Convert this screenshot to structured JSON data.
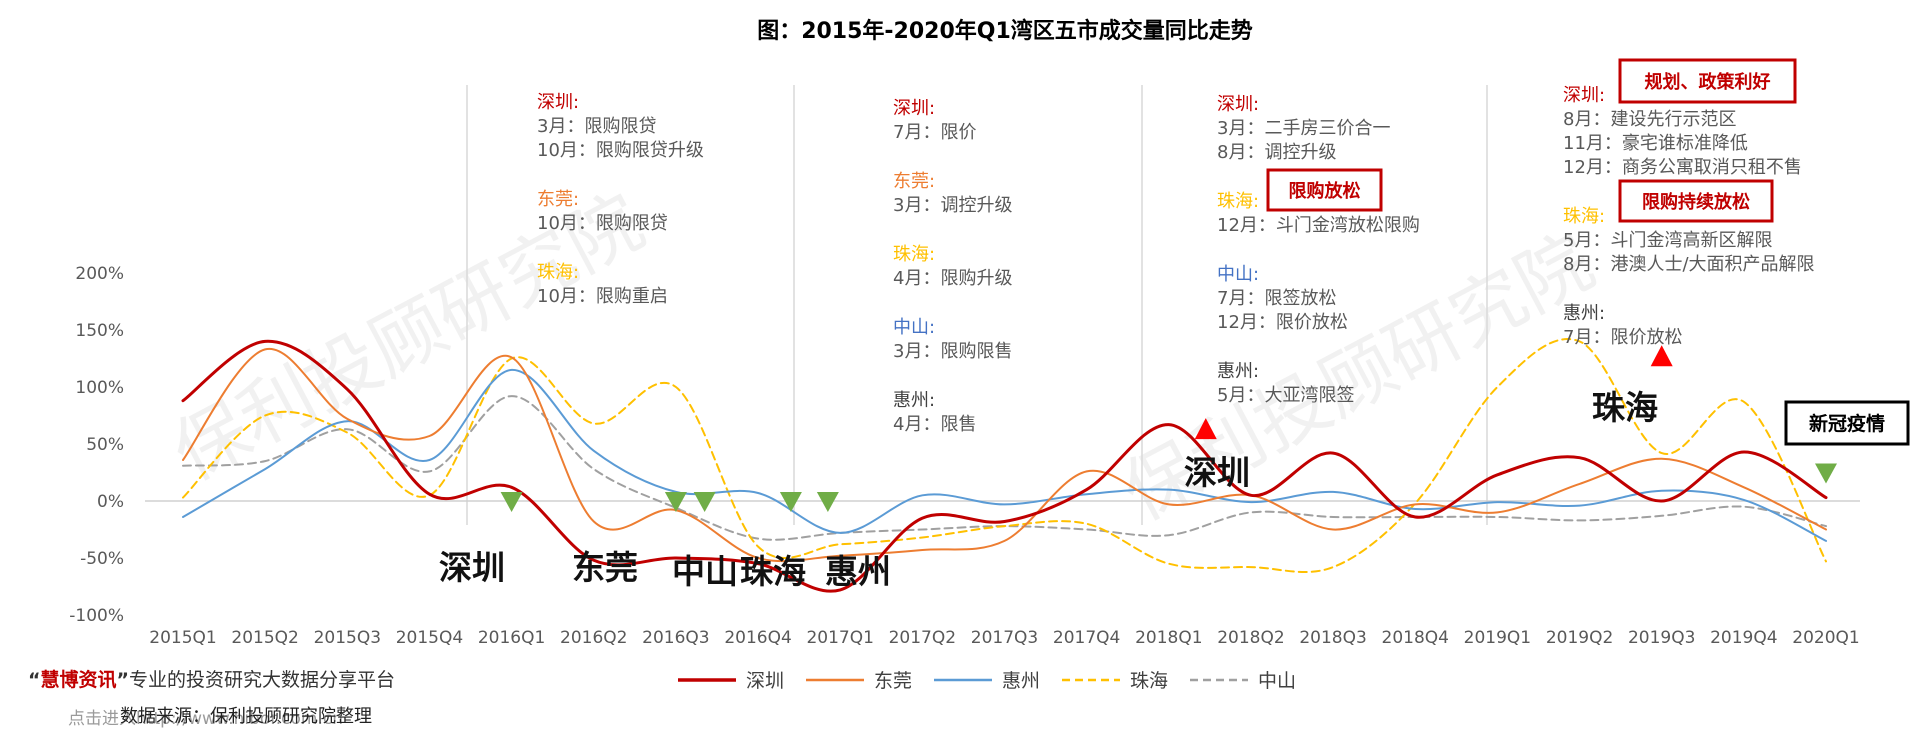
{
  "chart_data": {
    "type": "line",
    "title": "图：2015年-2020年Q1湾区五市成交量同比走势",
    "categories": [
      "2015Q1",
      "2015Q2",
      "2015Q3",
      "2015Q4",
      "2016Q1",
      "2016Q2",
      "2016Q3",
      "2016Q4",
      "2017Q1",
      "2017Q2",
      "2017Q3",
      "2017Q4",
      "2018Q1",
      "2018Q2",
      "2018Q3",
      "2018Q4",
      "2019Q1",
      "2019Q2",
      "2019Q3",
      "2019Q4",
      "2020Q1"
    ],
    "y_ticks": [
      "200%",
      "150%",
      "100%",
      "50%",
      "0%",
      "-50%",
      "-100%"
    ],
    "ylim": [
      -100,
      200
    ],
    "series": [
      {
        "name": "深圳",
        "color": "#c00000",
        "dash": "none",
        "width": 3,
        "values": [
          88,
          140,
          98,
          6,
          12,
          -52,
          -50,
          -55,
          -78,
          -15,
          -18,
          10,
          67,
          5,
          42,
          -14,
          23,
          38,
          0,
          43,
          3
        ]
      },
      {
        "name": "东莞",
        "color": "#ed7d31",
        "dash": "none",
        "width": 2,
        "values": [
          36,
          133,
          72,
          57,
          126,
          -18,
          -8,
          -50,
          -48,
          -43,
          -35,
          26,
          -3,
          5,
          -25,
          -3,
          -10,
          15,
          37,
          12,
          -25
        ]
      },
      {
        "name": "惠州",
        "color": "#5b9bd5",
        "dash": "none",
        "width": 2,
        "values": [
          -14,
          28,
          70,
          36,
          115,
          44,
          8,
          7,
          -28,
          5,
          -3,
          6,
          10,
          -1,
          8,
          -7,
          -1,
          -4,
          9,
          1,
          -35
        ]
      },
      {
        "name": "珠海",
        "color": "#ffc000",
        "dash": "8 5",
        "width": 2,
        "values": [
          3,
          75,
          60,
          5,
          125,
          68,
          100,
          -40,
          -38,
          -32,
          -22,
          -20,
          -55,
          -58,
          -58,
          -2,
          100,
          140,
          42,
          87,
          -53
        ]
      },
      {
        "name": "中山",
        "color": "#a0a0a0",
        "dash": "8 5",
        "width": 2,
        "values": [
          31,
          35,
          63,
          26,
          92,
          28,
          -6,
          -33,
          -28,
          -25,
          -22,
          -25,
          -30,
          -10,
          -14,
          -14,
          -14,
          -17,
          -13,
          -5,
          -22
        ]
      }
    ],
    "legend_position": "bottom",
    "grid": false,
    "city_events": [
      {
        "label": "深圳",
        "category": "2015Q4",
        "value": 0,
        "kind": "down"
      },
      {
        "label": "东莞",
        "category": "2016Q2",
        "value": 0,
        "kind": "down"
      },
      {
        "label": "中山",
        "category": "2016Q3",
        "value": 0,
        "kind": "down"
      },
      {
        "label": "珠海",
        "category": "2016Q4",
        "value": 0,
        "kind": "down"
      },
      {
        "label": "惠州",
        "category": "2017Q1",
        "value": 0,
        "kind": "down"
      },
      {
        "label": "深圳",
        "category": "2018Q1",
        "value": 63,
        "kind": "up"
      },
      {
        "label": "珠海",
        "category": "2019Q3",
        "value": 127,
        "kind": "up"
      },
      {
        "label": "",
        "category": "2020Q1",
        "value": 25,
        "kind": "down"
      }
    ],
    "badges": [
      "限购放松",
      "规划、政策利好",
      "限购持续放松",
      "新冠疫情"
    ],
    "policy_groups": [
      [
        {
          "city": "深圳:",
          "color": "#c00000",
          "lines": [
            "3月：限购限贷",
            "10月：限购限贷升级"
          ]
        },
        {
          "city": "东莞:",
          "color": "#ed7d31",
          "lines": [
            "10月：限购限贷"
          ]
        },
        {
          "city": "珠海:",
          "color": "#ffc000",
          "lines": [
            "10月：限购重启"
          ]
        }
      ],
      [
        {
          "city": "深圳:",
          "color": "#c00000",
          "lines": [
            "7月：限价"
          ]
        },
        {
          "city": "东莞:",
          "color": "#ed7d31",
          "lines": [
            "3月：调控升级"
          ]
        },
        {
          "city": "珠海:",
          "color": "#ffc000",
          "lines": [
            "4月：限购升级"
          ]
        },
        {
          "city": "中山:",
          "color": "#4472c4",
          "lines": [
            "3月：限购限售"
          ]
        },
        {
          "city": "惠州:",
          "color": "#404040",
          "lines": [
            "4月：限售"
          ]
        }
      ],
      [
        {
          "city": "深圳:",
          "color": "#c00000",
          "lines": [
            "3月：二手房三价合一",
            "8月：调控升级"
          ]
        },
        {
          "city": "珠海:",
          "color": "#ffc000",
          "lines": [
            "12月：斗门金湾放松限购"
          ]
        },
        {
          "city": "中山:",
          "color": "#4472c4",
          "lines": [
            "7月：限签放松",
            "12月：限价放松"
          ]
        },
        {
          "city": "惠州:",
          "color": "#404040",
          "lines": [
            "5月：大亚湾限签"
          ]
        }
      ],
      [
        {
          "city": "深圳:",
          "color": "#c00000",
          "lines": [
            "8月：建设先行示范区",
            "11月：豪宅谁标准降低",
            "12月：商务公寓取消只租不售"
          ]
        },
        {
          "city": "珠海:",
          "color": "#ffc000",
          "lines": [
            "5月：斗门金湾高新区解限",
            "8月：港澳人士/大面积产品解限"
          ]
        },
        {
          "city": "惠州:",
          "color": "#404040",
          "lines": [
            "7月：限价放松"
          ]
        }
      ]
    ]
  },
  "watermark": "保利投顾研究院",
  "footer": {
    "slogan_open": "“",
    "slogan_brand": "慧博资讯",
    "slogan_close": "”",
    "slogan_rest": "专业的投资研究大数据分享平台",
    "source": "数据来源：保利投顾研究院整理",
    "link_prefix": "点击进入",
    "link_url": "http://www.hibor.com.cn"
  }
}
